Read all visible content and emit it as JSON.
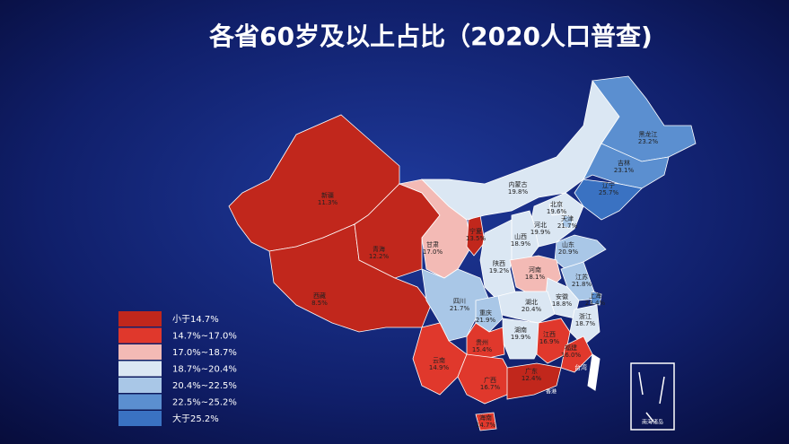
{
  "header": {
    "title": "各省60岁及以上占比（2020人口普查)"
  },
  "legend": [
    {
      "label": "小于14.7%",
      "color": "#c1271c"
    },
    {
      "label": "14.7%~17.0%",
      "color": "#e0382c"
    },
    {
      "label": "17.0%~18.7%",
      "color": "#f3bab5"
    },
    {
      "label": "18.7%~20.4%",
      "color": "#dbe7f3"
    },
    {
      "label": "20.4%~22.5%",
      "color": "#a9c7e7"
    },
    {
      "label": "22.5%~25.2%",
      "color": "#5b8fd0"
    },
    {
      "label": "大于25.2%",
      "color": "#3a72c2"
    }
  ],
  "provinces": [
    {
      "name": "新疆",
      "value": "11.3%",
      "color": "#c1271c"
    },
    {
      "name": "西藏",
      "value": "8.5%",
      "color": "#c1271c"
    },
    {
      "name": "青海",
      "value": "12.2%",
      "color": "#c1271c"
    },
    {
      "name": "甘肃",
      "value": "17.0%",
      "color": "#f3bab5"
    },
    {
      "name": "宁夏",
      "value": "13.5%",
      "color": "#c1271c"
    },
    {
      "name": "内蒙古",
      "value": "19.8%",
      "color": "#dbe7f3"
    },
    {
      "name": "黑龙江",
      "value": "23.2%",
      "color": "#5b8fd0"
    },
    {
      "name": "吉林",
      "value": "23.1%",
      "color": "#5b8fd0"
    },
    {
      "name": "辽宁",
      "value": "25.7%",
      "color": "#3a72c2"
    },
    {
      "name": "河北",
      "value": "19.9%",
      "color": "#dbe7f3"
    },
    {
      "name": "北京",
      "value": "19.6%",
      "color": "#dbe7f3"
    },
    {
      "name": "天津",
      "value": "21.7%",
      "color": "#a9c7e7"
    },
    {
      "name": "山西",
      "value": "18.9%",
      "color": "#dbe7f3"
    },
    {
      "name": "山东",
      "value": "20.9%",
      "color": "#a9c7e7"
    },
    {
      "name": "陕西",
      "value": "19.2%",
      "color": "#dbe7f3"
    },
    {
      "name": "河南",
      "value": "18.1%",
      "color": "#f3bab5"
    },
    {
      "name": "江苏",
      "value": "21.8%",
      "color": "#a9c7e7"
    },
    {
      "name": "上海",
      "value": "23.4%",
      "color": "#5b8fd0"
    },
    {
      "name": "安徽",
      "value": "18.8%",
      "color": "#dbe7f3"
    },
    {
      "name": "湖北",
      "value": "20.4%",
      "color": "#dbe7f3"
    },
    {
      "name": "浙江",
      "value": "18.7%",
      "color": "#dbe7f3"
    },
    {
      "name": "四川",
      "value": "21.7%",
      "color": "#a9c7e7"
    },
    {
      "name": "重庆",
      "value": "21.9%",
      "color": "#a9c7e7"
    },
    {
      "name": "湖南",
      "value": "19.9%",
      "color": "#dbe7f3"
    },
    {
      "name": "贵州",
      "value": "15.4%",
      "color": "#e0382c"
    },
    {
      "name": "江西",
      "value": "16.9%",
      "color": "#e0382c"
    },
    {
      "name": "福建",
      "value": "16.0%",
      "color": "#e0382c"
    },
    {
      "name": "云南",
      "value": "14.9%",
      "color": "#e0382c"
    },
    {
      "name": "广西",
      "value": "16.7%",
      "color": "#e0382c"
    },
    {
      "name": "广东",
      "value": "12.4%",
      "color": "#c1271c"
    },
    {
      "name": "海南",
      "value": "14.7%",
      "color": "#e0382c"
    }
  ],
  "other_labels": {
    "hongkong": "香港",
    "taiwan": "台湾",
    "south_sea": "南海诸岛"
  }
}
